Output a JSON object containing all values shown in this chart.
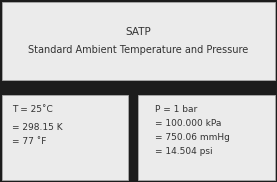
{
  "title_line1": "SATP",
  "title_line2": "Standard Ambient Temperature and Pressure",
  "header_bg": "#ebebeb",
  "box_bg": "#ebebeb",
  "dark_bg": "#1c1c1c",
  "border_color": "#aaaaaa",
  "temp_lines": [
    "T = 25˚C",
    "= 298.15 K",
    "= 77 ˚F"
  ],
  "press_lines": [
    "P = 1 bar",
    "= 100.000 kPa",
    "= 750.06 mmHg",
    "= 14.504 psi"
  ],
  "text_color": "#333333",
  "font_size_title1": 7.5,
  "font_size_title2": 7.0,
  "font_size_body": 6.5
}
